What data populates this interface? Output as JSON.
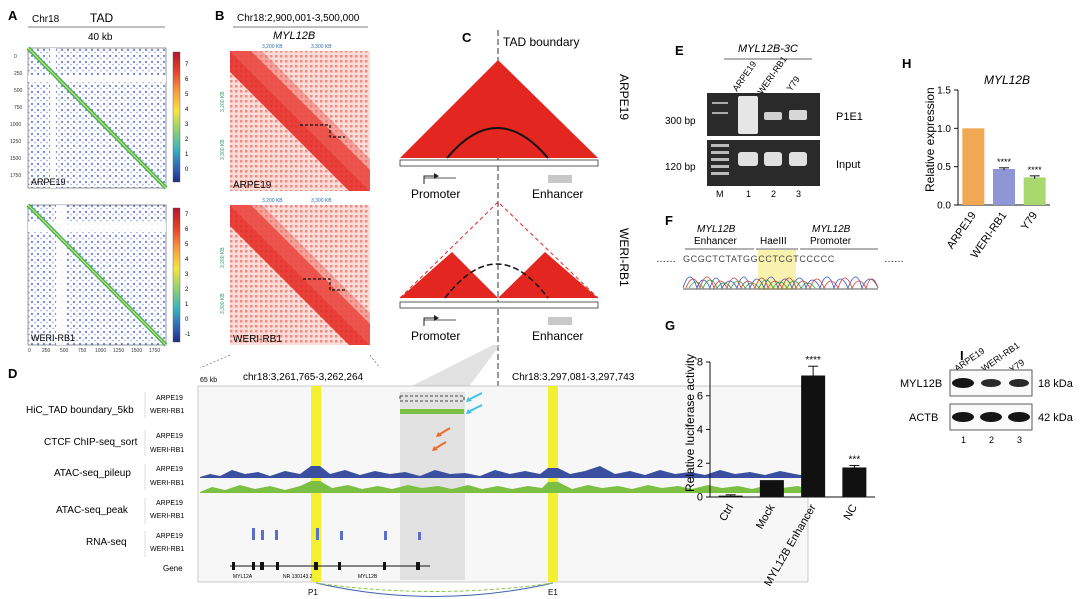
{
  "colors": {
    "heat_red": "#e42620",
    "accent_yellow": "#f2ee1c",
    "atac_blue": "#3b4fa0",
    "atac_green": "#7bc043",
    "rna_blue": "#5a6fc7",
    "bar_orange": "#f0a852",
    "bar_purple": "#8e96d6",
    "bar_green": "#a9d86e",
    "sig_black": "#111111"
  },
  "panelA": {
    "letter": "A",
    "chr": "Chr18",
    "title": "TAD",
    "scale": "40 kb",
    "ticks": [
      "0",
      "250",
      "500",
      "750",
      "1000",
      "1250",
      "1500",
      "1750"
    ],
    "colorbar_ticks": [
      "7",
      "6",
      "5",
      "4",
      "3",
      "2",
      "1",
      "0",
      "-1"
    ],
    "sample1": "ARPE19",
    "sample2": "WERI-RB1"
  },
  "panelB": {
    "letter": "B",
    "region": "Chr18:2,900,001-3,500,000",
    "gene": "MYL12B",
    "xticks": [
      "3,200 KB",
      "3,300 KB"
    ],
    "yticks": [
      "3,200 KB",
      "3,300 KB"
    ],
    "sample1": "ARPE19",
    "sample2": "WERI-RB1"
  },
  "panelC": {
    "letter": "C",
    "boundary": "TAD boundary",
    "promoter": "Promoter",
    "enhancer": "Enhancer",
    "sample1": "ARPE19",
    "sample2": "WERI-RB1"
  },
  "panelD": {
    "letter": "D",
    "scale": "65 kb",
    "region1": "chr18:3,261,765-3,262,264",
    "region2": "Chr18:3,297,081-3,297,743",
    "tracks": [
      {
        "label": "HiC_TAD boundary_5kb",
        "samples": [
          "ARPE19",
          "WERI-RB1"
        ]
      },
      {
        "label": "CTCF ChIP-seq_sort",
        "samples": [
          "ARPE19",
          "WERI-RB1"
        ]
      },
      {
        "label": "ATAC-seq_pileup",
        "samples": [
          "ARPE19",
          "WERI-RB1"
        ]
      },
      {
        "label": "ATAC-seq_peak",
        "samples": [
          "ARPE19",
          "WERI-RB1"
        ]
      },
      {
        "label": "RNA-seq",
        "samples": [
          "ARPE19",
          "WERI-RB1"
        ]
      },
      {
        "label": "Gene",
        "samples": []
      }
    ],
    "gene_names": [
      "MYL12A",
      "NR 130143.2",
      "MYL12B"
    ],
    "p1": "P1",
    "e1": "E1"
  },
  "panelE": {
    "letter": "E",
    "title": "MYL12B-3C",
    "lanes": [
      "ARPE19",
      "WERI-RB1",
      "Y79"
    ],
    "bp_top": "300 bp",
    "bp_bottom": "120 bp",
    "band_top": "P1E1",
    "band_bottom": "Input",
    "lane_numbers": [
      "M",
      "1",
      "2",
      "3"
    ]
  },
  "panelF": {
    "letter": "F",
    "enhancer_gene": "MYL12B",
    "enhancer_label": "Enhancer",
    "site": "HaeIII",
    "promoter_gene": "MYL12B",
    "promoter_label": "Promoter",
    "sequence": "GCGCTCTATGGCCTCGTCCCCC"
  },
  "panelG": {
    "letter": "G",
    "ylabel": "Relative luciferase activity",
    "yticks": [
      "0",
      "2",
      "4",
      "6",
      "8"
    ]
  },
  "panelH": {
    "letter": "H",
    "title": "MYL12B",
    "ylabel": "Relative expression",
    "yticks": [
      "0.0",
      "0.5",
      "1.0",
      "1.5"
    ]
  },
  "panelI": {
    "letter": "I",
    "lanes": [
      "ARPE19",
      "WERI-RB1",
      "Y79"
    ],
    "proteins": [
      "MYL12B",
      "ACTB"
    ],
    "sizes": [
      "18 kDa",
      "42 kDa"
    ],
    "lane_numbers": [
      "1",
      "2",
      "3"
    ]
  },
  "chart_data": [
    {
      "type": "bar",
      "panel": "G",
      "categories": [
        "Ctrl",
        "Mock",
        "MYL12B Enhancer",
        "NC"
      ],
      "values": [
        0.08,
        1.0,
        7.2,
        1.75
      ],
      "errors": [
        0.05,
        0.0,
        0.55,
        0.12
      ],
      "significance": [
        "",
        "",
        "****",
        "***"
      ],
      "ylabel": "Relative luciferase activity",
      "ylim": [
        0,
        8
      ]
    },
    {
      "type": "bar",
      "panel": "H",
      "title": "MYL12B",
      "categories": [
        "ARPE19",
        "WERI-RB1",
        "Y79"
      ],
      "values": [
        1.0,
        0.47,
        0.36
      ],
      "errors": [
        0.0,
        0.015,
        0.02
      ],
      "significance": [
        "",
        "****",
        "****"
      ],
      "ylabel": "Relative expression",
      "ylim": [
        0,
        1.5
      ]
    }
  ]
}
